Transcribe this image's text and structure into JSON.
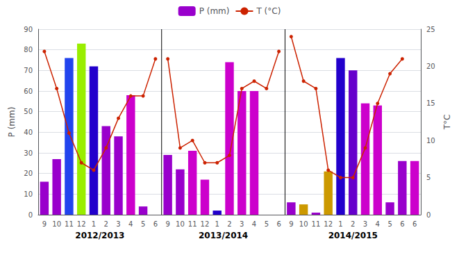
{
  "chart_data": {
    "type": "bar",
    "categories": [
      "9",
      "10",
      "11",
      "12",
      "1",
      "2",
      "3",
      "4",
      "5",
      "6",
      "9",
      "10",
      "11",
      "12",
      "1",
      "2",
      "3",
      "4",
      "5",
      "6",
      "9",
      "10",
      "11",
      "12",
      "1",
      "2",
      "3",
      "4",
      "5",
      "6",
      "6"
    ],
    "series": [
      {
        "name": "P (mm)",
        "type": "bar",
        "color": "#9900cc",
        "colors": [
          "#9900cc",
          "#9900cc",
          "#2244ee",
          "#99ee00",
          "#2200cc",
          "#9900cc",
          "#9900cc",
          "#cc00cc",
          "#9900cc",
          "#9900cc",
          "#9900cc",
          "#9900cc",
          "#cc00cc",
          "#cc00cc",
          "#2200cc",
          "#cc00cc",
          "#cc00cc",
          "#cc00cc",
          "#cc00cc",
          "#cc00cc",
          "#9900cc",
          "#cc9900",
          "#9900cc",
          "#cc9900",
          "#2200cc",
          "#6600cc",
          "#cc00cc",
          "#cc00cc",
          "#9900cc",
          "#9900cc",
          "#cc00cc"
        ],
        "values": [
          16,
          27,
          76,
          83,
          72,
          43,
          38,
          58,
          4,
          0,
          29,
          22,
          31,
          17,
          2,
          74,
          60,
          60,
          0,
          0,
          6,
          5,
          1,
          21,
          76,
          70,
          54,
          53,
          6,
          26,
          26
        ]
      },
      {
        "name": "T (°C)",
        "type": "line",
        "axis": "y2",
        "color": "#cc2200",
        "marker": "circle",
        "values": [
          22,
          17,
          11,
          7,
          6,
          9,
          13,
          16,
          16,
          21,
          null,
          null,
          null,
          null,
          null,
          null,
          null,
          null,
          null,
          null,
          null,
          null,
          null,
          null,
          null,
          null,
          null,
          null,
          null,
          null,
          null
        ]
      },
      {
        "name": "T (°C)",
        "type": "line",
        "axis": "y2",
        "color": "#cc2200",
        "marker": "circle",
        "values": [
          null,
          null,
          null,
          null,
          null,
          null,
          null,
          null,
          null,
          null,
          21,
          9,
          10,
          7,
          7,
          8,
          17,
          18,
          17,
          22,
          null,
          null,
          null,
          null,
          null,
          null,
          null,
          null,
          null,
          null,
          null
        ]
      },
      {
        "name": "T (°C)",
        "type": "line",
        "axis": "y2",
        "color": "#cc2200",
        "marker": "circle",
        "values": [
          null,
          null,
          null,
          null,
          null,
          null,
          null,
          null,
          null,
          null,
          null,
          null,
          null,
          null,
          null,
          null,
          null,
          null,
          null,
          null,
          24,
          18,
          17,
          6,
          5,
          5,
          9,
          15,
          19,
          21,
          null
        ]
      }
    ],
    "ylabel": "P (mm)",
    "y2label": "T°C",
    "ylim": [
      0,
      90
    ],
    "yticks": [
      0,
      10,
      20,
      30,
      40,
      50,
      60,
      70,
      80,
      90
    ],
    "y2lim": [
      0,
      25
    ],
    "y2ticks": [
      0,
      5,
      10,
      15,
      20,
      25
    ],
    "grid": true,
    "legend": "upper center",
    "annotations": [
      "2012/2013",
      "2013/2014",
      "2014/2015"
    ]
  }
}
